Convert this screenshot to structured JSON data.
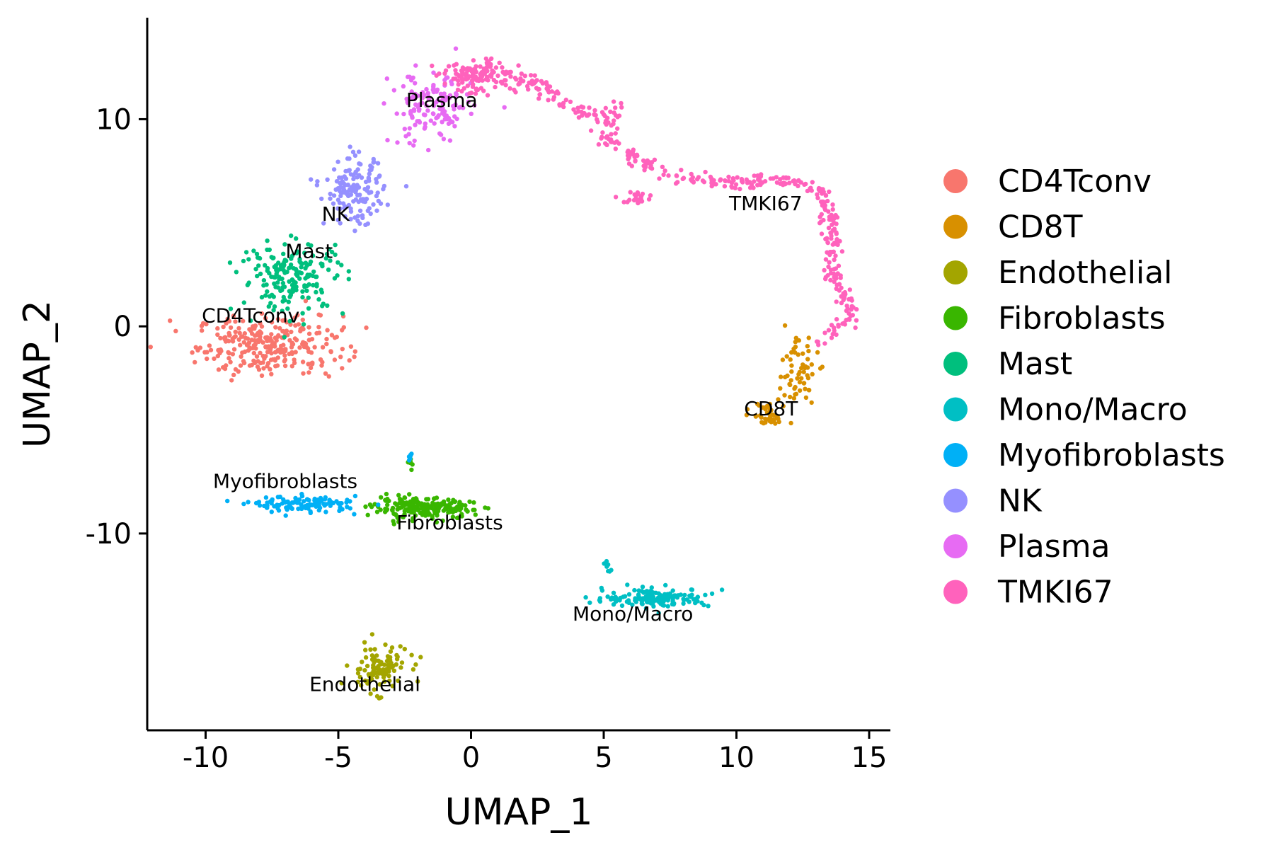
{
  "chart_data": {
    "type": "scatter",
    "title": "",
    "xlabel": "UMAP_1",
    "ylabel": "UMAP_2",
    "xlim": [
      -12.2,
      15.8
    ],
    "ylim": [
      -19.5,
      14.9
    ],
    "xticks": [
      -10,
      -5,
      0,
      5,
      10,
      15
    ],
    "yticks": [
      -10,
      0,
      10
    ],
    "xtick_labels": [
      "-10",
      "-5",
      "0",
      "5",
      "10",
      "15"
    ],
    "ytick_labels": [
      "-10",
      "0",
      "10"
    ],
    "grid": false,
    "legend_position": "right",
    "series": [
      {
        "name": "CD4Tconv",
        "color": "#F8766D",
        "label": "CD4Tconv",
        "label_at": [
          -8.3,
          0.2
        ],
        "clusters": [
          [
            -7.6,
            -0.9,
            2.5,
            1.3,
            280
          ]
        ]
      },
      {
        "name": "CD8T",
        "color": "#D89000",
        "label": "CD8T",
        "label_at": [
          11.3,
          -4.3
        ],
        "clusters": [
          [
            12.3,
            -2.2,
            0.7,
            1.5,
            60
          ],
          [
            11.2,
            -4.3,
            0.6,
            0.6,
            40
          ]
        ]
      },
      {
        "name": "Endothelial",
        "color": "#A3A500",
        "label": "Endothelial",
        "label_at": [
          -4.0,
          -17.6
        ],
        "clusters": [
          [
            -3.5,
            -16.5,
            1.0,
            1.0,
            110
          ]
        ]
      },
      {
        "name": "Fibroblasts",
        "color": "#39B600",
        "label": "Fibroblasts",
        "label_at": [
          -0.8,
          -9.8
        ],
        "clusters": [
          [
            -1.8,
            -8.8,
            1.7,
            0.45,
            200
          ],
          [
            -2.3,
            -6.5,
            0.1,
            0.3,
            6
          ]
        ]
      },
      {
        "name": "Mast",
        "color": "#00BF7D",
        "label": "Mast",
        "label_at": [
          -6.1,
          3.3
        ],
        "clusters": [
          [
            -6.7,
            2.4,
            1.8,
            1.6,
            180
          ]
        ]
      },
      {
        "name": "Mono/Macro",
        "color": "#00BFC4",
        "label": "Mono/Macro",
        "label_at": [
          6.1,
          -14.2
        ],
        "clusters": [
          [
            7.0,
            -13.1,
            1.8,
            0.4,
            150
          ],
          [
            5.1,
            -11.6,
            0.15,
            0.3,
            8
          ]
        ]
      },
      {
        "name": "Myofibroblasts",
        "color": "#00B0F6",
        "label": "Myofibroblasts",
        "label_at": [
          -7.0,
          -7.8
        ],
        "clusters": [
          [
            -6.2,
            -8.6,
            1.8,
            0.35,
            120
          ],
          [
            -2.3,
            -6.3,
            0.1,
            0.3,
            6
          ]
        ]
      },
      {
        "name": "NK",
        "color": "#9590FF",
        "label": "NK",
        "label_at": [
          -5.1,
          5.1
        ],
        "clusters": [
          [
            -4.4,
            6.5,
            1.0,
            1.4,
            150
          ]
        ]
      },
      {
        "name": "Plasma",
        "color": "#E76BF3",
        "label": "Plasma",
        "label_at": [
          -1.1,
          10.6
        ],
        "clusters": [
          [
            -1.5,
            10.5,
            1.4,
            1.6,
            140
          ]
        ]
      },
      {
        "name": "TMKI67",
        "color": "#FF62BC",
        "label": "TMKI67",
        "label_at": [
          11.1,
          5.6
        ],
        "path": [
          [
            -0.5,
            12.0
          ],
          [
            0.8,
            12.6
          ],
          [
            2.3,
            11.8
          ],
          [
            3.8,
            10.6
          ],
          [
            4.8,
            10.1
          ],
          [
            5.5,
            10.4
          ],
          [
            5.0,
            9.2
          ],
          [
            6.2,
            8.0
          ],
          [
            7.3,
            7.4
          ],
          [
            8.5,
            7.1
          ],
          [
            10.0,
            7.0
          ],
          [
            12.0,
            7.0
          ],
          [
            13.3,
            6.5
          ],
          [
            13.6,
            4.0
          ],
          [
            13.7,
            2.3
          ],
          [
            14.4,
            0.5
          ],
          [
            13.1,
            -0.8
          ]
        ],
        "path_count": 420,
        "path_spread": 0.35,
        "clusters": [
          [
            0.5,
            12.0,
            1.6,
            0.7,
            100
          ],
          [
            6.3,
            6.2,
            0.5,
            0.3,
            25
          ]
        ]
      }
    ]
  }
}
